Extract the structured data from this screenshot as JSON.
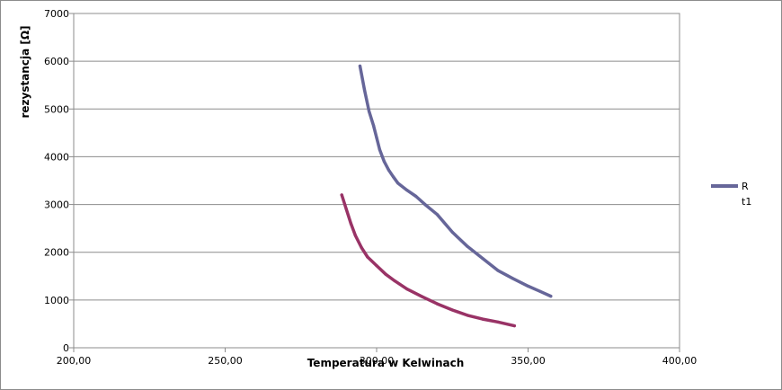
{
  "chart_data": {
    "type": "line",
    "title": "",
    "xlabel": "Temperatura w Kelwinach",
    "ylabel": "rezystancja [Ω]",
    "xlim": [
      200,
      400
    ],
    "ylim": [
      0,
      7000
    ],
    "x_ticks": [
      200,
      250,
      300,
      350,
      400
    ],
    "x_tick_labels": [
      "200,00",
      "250,00",
      "300,00",
      "350,00",
      "400,00"
    ],
    "y_ticks": [
      0,
      1000,
      2000,
      3000,
      4000,
      5000,
      6000,
      7000
    ],
    "y_tick_labels": [
      "0",
      "1000",
      "2000",
      "3000",
      "4000",
      "5000",
      "6000",
      "7000"
    ],
    "grid": "horizontal",
    "legend_position": "right",
    "legend": [
      {
        "line1": "R",
        "line2": "t1",
        "color": "#666699"
      }
    ],
    "series": [
      {
        "name": "Rt1",
        "color": "#666699",
        "x": [
          294.5,
          296,
          297.5,
          299,
          300,
          301,
          302.5,
          304,
          305.5,
          307,
          310,
          313,
          316,
          320,
          325,
          330,
          335,
          340,
          345,
          350,
          354,
          357.5
        ],
        "y": [
          5900,
          5400,
          4950,
          4650,
          4400,
          4150,
          3900,
          3720,
          3580,
          3450,
          3300,
          3170,
          3000,
          2790,
          2420,
          2120,
          1870,
          1620,
          1450,
          1290,
          1180,
          1080
        ]
      },
      {
        "name": "",
        "color": "#993366",
        "x": [
          288.5,
          290,
          291.5,
          293,
          295,
          297,
          300,
          303,
          306,
          310,
          315,
          320,
          325,
          330,
          335,
          340,
          345.5
        ],
        "y": [
          3200,
          2900,
          2600,
          2350,
          2100,
          1900,
          1720,
          1540,
          1400,
          1230,
          1070,
          920,
          790,
          680,
          600,
          540,
          460
        ]
      }
    ]
  }
}
